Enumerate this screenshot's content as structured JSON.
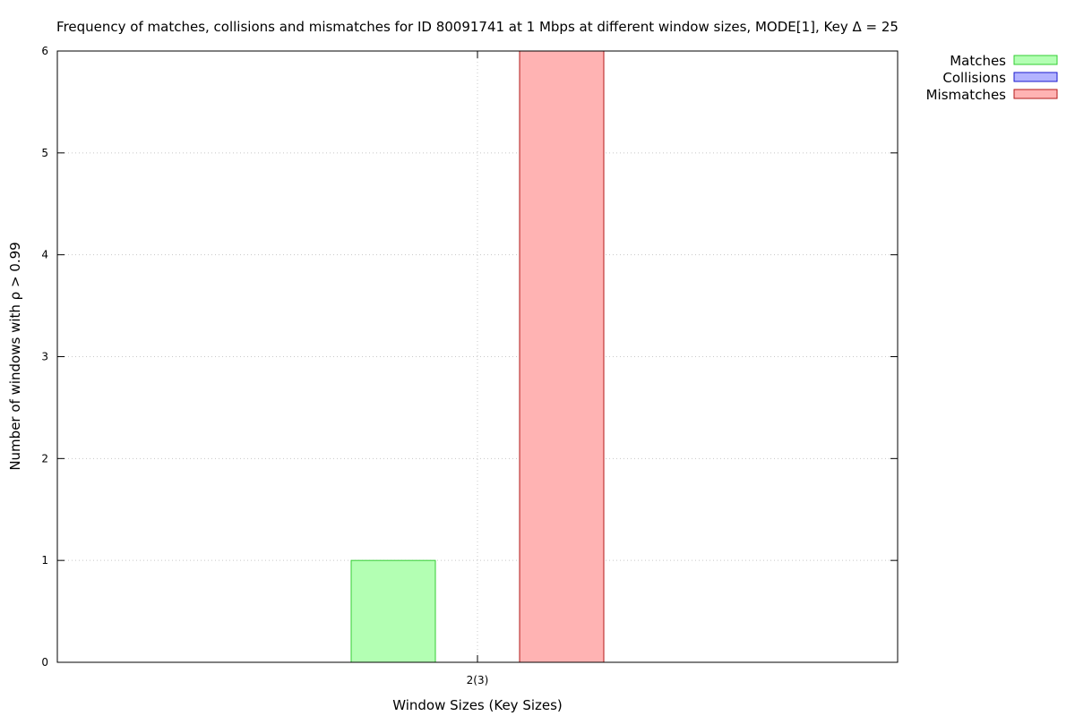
{
  "chart_data": {
    "type": "bar",
    "title": "Frequency of matches, collisions and mismatches for ID 80091741 at 1 Mbps at different window sizes, MODE[1], Key Δ = 25",
    "xlabel": "Window Sizes (Key Sizes)",
    "ylabel": "Number of windows with ρ > 0.99",
    "categories": [
      "2(3)"
    ],
    "series": [
      {
        "name": "Matches",
        "values": [
          1
        ],
        "fill": "#b3ffb3",
        "stroke": "#33cc33"
      },
      {
        "name": "Collisions",
        "values": [
          0
        ],
        "fill": "#b3b3ff",
        "stroke": "#1a1acc"
      },
      {
        "name": "Mismatches",
        "values": [
          6
        ],
        "fill": "#ffb3b3",
        "stroke": "#b31a1a"
      }
    ],
    "ylim": [
      0,
      6
    ],
    "yticks": [
      "0",
      "1",
      "2",
      "3",
      "4",
      "5",
      "6"
    ],
    "grid": true,
    "legend_position": "top-right, outside plot"
  }
}
